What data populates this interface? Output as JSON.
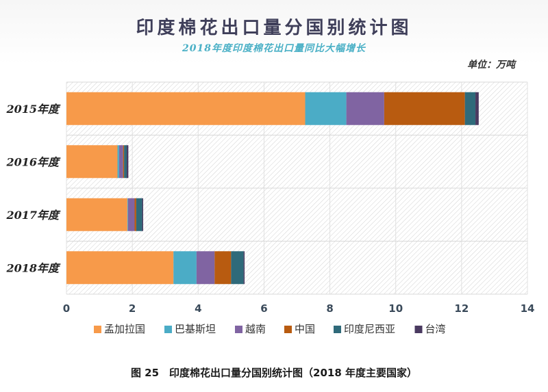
{
  "chart_data": {
    "type": "bar",
    "orientation": "horizontal",
    "stacked": true,
    "title": "印度棉花出口量分国别统计图",
    "subtitle": "2018年度印度棉花出口量同比大幅增长",
    "unit": "单位：万吨",
    "categories": [
      "2015年度",
      "2016年度",
      "2017年度",
      "2018年度"
    ],
    "series": [
      {
        "name": "孟加拉国",
        "color": "#f79a4a",
        "values": [
          7.25,
          1.55,
          1.85,
          3.25
        ]
      },
      {
        "name": "巴基斯坦",
        "color": "#4bacc6",
        "values": [
          1.25,
          0.05,
          0.02,
          0.7
        ]
      },
      {
        "name": "越南",
        "color": "#8064a2",
        "values": [
          1.15,
          0.12,
          0.2,
          0.55
        ]
      },
      {
        "name": "中国",
        "color": "#b85b10",
        "values": [
          2.45,
          0.03,
          0.05,
          0.5
        ]
      },
      {
        "name": "印度尼西亚",
        "color": "#2f6a7a",
        "values": [
          0.32,
          0.08,
          0.18,
          0.38
        ]
      },
      {
        "name": "台湾",
        "color": "#4a3a60",
        "values": [
          0.1,
          0.05,
          0.03,
          0.03
        ]
      }
    ],
    "xlim": [
      0,
      14
    ],
    "xticks": [
      "0",
      "2",
      "4",
      "6",
      "8",
      "10",
      "12",
      "14"
    ],
    "grid": true,
    "legend_position": "bottom"
  },
  "caption": "图 25　印度棉花出口量分国别统计图（2018 年度主要国家）"
}
